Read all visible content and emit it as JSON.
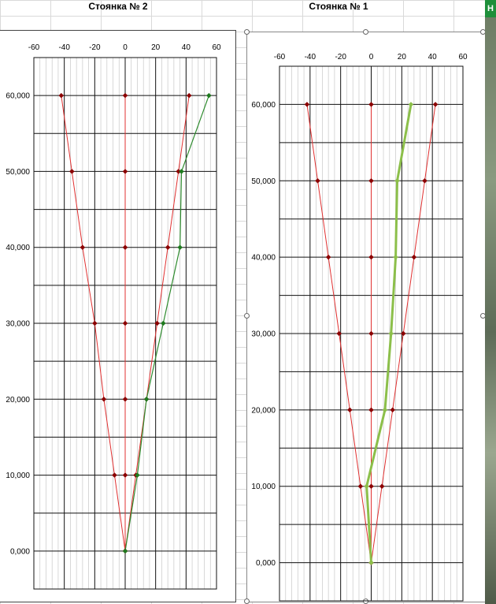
{
  "sheet": {
    "edge_tab_label": "Н",
    "accent_green": "#1e8f3a"
  },
  "chart_data": [
    {
      "type": "scatter",
      "title": "Стоянка № 2",
      "xlabel": "",
      "ylabel": "",
      "xlim": [
        -60,
        60
      ],
      "ylim": [
        -5,
        65
      ],
      "x_ticks": [
        -60,
        -40,
        -20,
        0,
        20,
        40,
        60
      ],
      "y_ticks": [
        0,
        10,
        20,
        30,
        40,
        50,
        60
      ],
      "y_tick_labels": [
        "0,000",
        "10,000",
        "20,000",
        "30,000",
        "40,000",
        "50,000",
        "60,000"
      ],
      "x_tick_labels": [
        "-60",
        "-40",
        "-20",
        "0",
        "20",
        "40",
        "60"
      ],
      "grid": true,
      "series": [
        {
          "color": "#e03030",
          "marker_color": "#8b0000",
          "line_width": 1,
          "points": [
            [
              0,
              0
            ],
            [
              -7,
              10
            ],
            [
              -14,
              20
            ],
            [
              -20,
              30
            ],
            [
              -28,
              40
            ],
            [
              -35,
              50
            ],
            [
              -42,
              60
            ]
          ]
        },
        {
          "color": "#e03030",
          "marker_color": "#8b0000",
          "line_width": 1,
          "points": [
            [
              0,
              0
            ],
            [
              7,
              10
            ],
            [
              14,
              20
            ],
            [
              21,
              30
            ],
            [
              28,
              40
            ],
            [
              35,
              50
            ],
            [
              42,
              60
            ]
          ]
        },
        {
          "color": "#e03030",
          "marker_color": "#8b0000",
          "line_width": 1,
          "points": [
            [
              0,
              0
            ],
            [
              0,
              10
            ],
            [
              0,
              20
            ],
            [
              0,
              30
            ],
            [
              0,
              40
            ],
            [
              0,
              50
            ],
            [
              0,
              60
            ]
          ]
        },
        {
          "color": "#2e8b2e",
          "marker_color": "#1e7a1e",
          "line_width": 1.2,
          "points": [
            [
              0,
              0
            ],
            [
              8,
              10
            ],
            [
              14,
              20
            ],
            [
              25,
              30
            ],
            [
              36,
              40
            ],
            [
              37,
              50
            ],
            [
              55,
              60
            ]
          ]
        }
      ]
    },
    {
      "type": "scatter",
      "title": "Стоянка № 1",
      "xlabel": "",
      "ylabel": "",
      "xlim": [
        -60,
        60
      ],
      "ylim": [
        -5,
        65
      ],
      "x_ticks": [
        -60,
        -40,
        -20,
        0,
        20,
        40,
        60
      ],
      "y_ticks": [
        0,
        10,
        20,
        30,
        40,
        50,
        60
      ],
      "y_tick_labels": [
        "0,000",
        "10,000",
        "20,000",
        "30,000",
        "40,000",
        "50,000",
        "60,000"
      ],
      "x_tick_labels": [
        "-60",
        "-40",
        "-20",
        "0",
        "20",
        "40",
        "60"
      ],
      "grid": true,
      "series": [
        {
          "color": "#e03030",
          "marker_color": "#8b0000",
          "line_width": 1,
          "points": [
            [
              0,
              0
            ],
            [
              -7,
              10
            ],
            [
              -14,
              20
            ],
            [
              -21,
              30
            ],
            [
              -28,
              40
            ],
            [
              -35,
              50
            ],
            [
              -42,
              60
            ]
          ]
        },
        {
          "color": "#e03030",
          "marker_color": "#8b0000",
          "line_width": 1,
          "points": [
            [
              0,
              0
            ],
            [
              7,
              10
            ],
            [
              14,
              20
            ],
            [
              21,
              30
            ],
            [
              28,
              40
            ],
            [
              35,
              50
            ],
            [
              42,
              60
            ]
          ]
        },
        {
          "color": "#e03030",
          "marker_color": "#8b0000",
          "line_width": 1,
          "points": [
            [
              0,
              0
            ],
            [
              0,
              10
            ],
            [
              0,
              20
            ],
            [
              0,
              30
            ],
            [
              0,
              40
            ],
            [
              0,
              50
            ],
            [
              0,
              60
            ]
          ]
        },
        {
          "color": "#8cbf4a",
          "marker_color": "#8cbf4a",
          "line_width": 3,
          "points": [
            [
              0,
              0
            ],
            [
              -3,
              10
            ],
            [
              9,
              20
            ],
            [
              13,
              30
            ],
            [
              16,
              40
            ],
            [
              17,
              50
            ],
            [
              26,
              60
            ]
          ]
        }
      ]
    }
  ]
}
